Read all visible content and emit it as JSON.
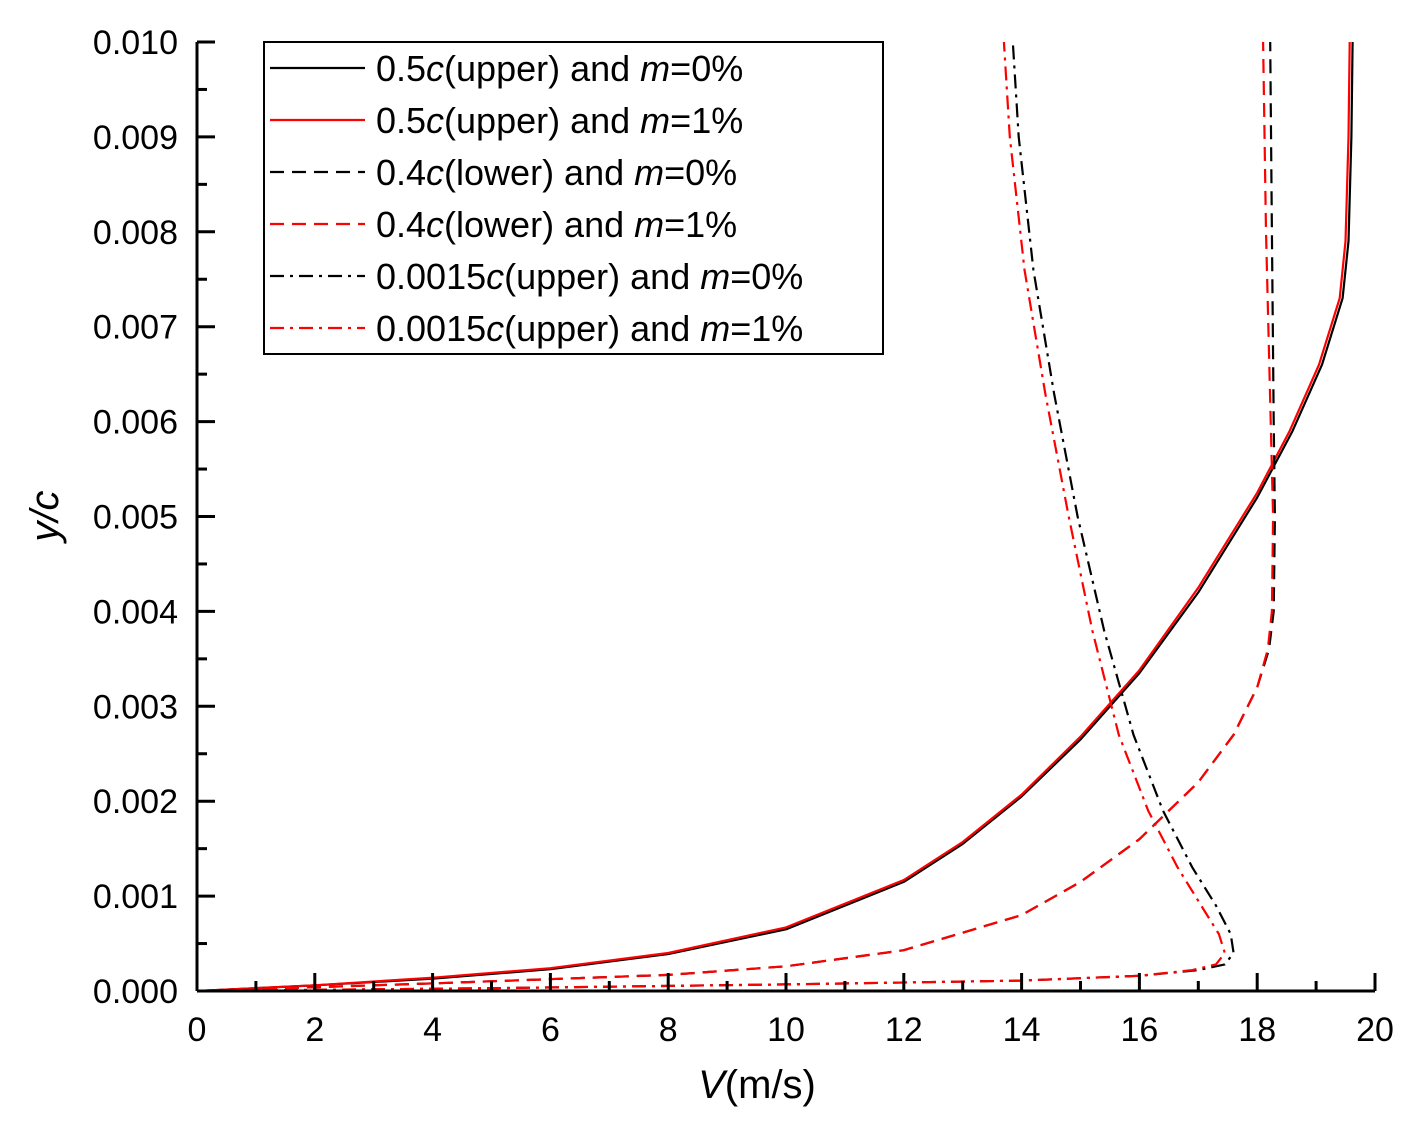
{
  "chart_data": {
    "type": "line",
    "title": "",
    "xlabel_italic": "V",
    "xlabel_rest": "(m/s)",
    "ylabel": "y/c",
    "xlim": [
      0,
      20
    ],
    "ylim": [
      0,
      0.01
    ],
    "xticks": [
      0,
      2,
      4,
      6,
      8,
      10,
      12,
      14,
      16,
      18,
      20
    ],
    "xtick_labels": [
      "0",
      "2",
      "4",
      "6",
      "8",
      "10",
      "12",
      "14",
      "16",
      "18",
      "20"
    ],
    "yticks": [
      0,
      0.001,
      0.002,
      0.003,
      0.004,
      0.005,
      0.006,
      0.007,
      0.008,
      0.009,
      0.01
    ],
    "ytick_labels": [
      "0.000",
      "0.001",
      "0.002",
      "0.003",
      "0.004",
      "0.005",
      "0.006",
      "0.007",
      "0.008",
      "0.009",
      "0.010"
    ],
    "grid": false,
    "legend_position": "top-left",
    "series": [
      {
        "name": "0.5c(upper) and m=0%",
        "legend": {
          "pre": "0.5",
          "c": "c",
          "mid": "(upper) and ",
          "m": "m",
          "post": "=0%"
        },
        "color": "#000000",
        "dash": "solid",
        "x": [
          0,
          2,
          4,
          6,
          8,
          10,
          12,
          13,
          14,
          15,
          16,
          17,
          18,
          18.6,
          19.1,
          19.45,
          19.55,
          19.6,
          19.62
        ],
        "y": [
          0,
          6e-05,
          0.00013,
          0.00023,
          0.00039,
          0.00065,
          0.00115,
          0.00155,
          0.00205,
          0.00265,
          0.00335,
          0.0042,
          0.0052,
          0.0059,
          0.0066,
          0.0073,
          0.0079,
          0.009,
          0.01
        ]
      },
      {
        "name": "0.5c(upper) and m=1%",
        "legend": {
          "pre": "0.5",
          "c": "c",
          "mid": "(upper) and ",
          "m": "m",
          "post": "=1%"
        },
        "color": "#ff0000",
        "dash": "solid",
        "x": [
          0,
          2,
          4,
          6,
          8,
          10,
          12,
          13,
          14,
          15,
          16,
          17,
          18,
          18.55,
          19.05,
          19.4,
          19.5,
          19.55,
          19.57
        ],
        "y": [
          0,
          6e-05,
          0.00014,
          0.00024,
          0.0004,
          0.00067,
          0.00117,
          0.00157,
          0.00207,
          0.00268,
          0.00338,
          0.00425,
          0.00525,
          0.0059,
          0.0066,
          0.0073,
          0.0079,
          0.009,
          0.01
        ]
      },
      {
        "name": "0.4c(lower) and m=0%",
        "legend": {
          "pre": "0.4",
          "c": "c",
          "mid": "(lower) and ",
          "m": "m",
          "post": "=0%"
        },
        "color": "#000000",
        "dash": "dash",
        "x": [
          0,
          4,
          8,
          10,
          12,
          14,
          15,
          16,
          17,
          17.6,
          18.0,
          18.2,
          18.28,
          18.3,
          18.28,
          18.25,
          18.22
        ],
        "y": [
          0,
          8e-05,
          0.00017,
          0.00026,
          0.00043,
          0.0008,
          0.00115,
          0.0016,
          0.0022,
          0.0027,
          0.0032,
          0.0036,
          0.004,
          0.005,
          0.006,
          0.008,
          0.01
        ]
      },
      {
        "name": "0.4c(lower) and m=1%",
        "legend": {
          "pre": "0.4",
          "c": "c",
          "mid": "(lower) and ",
          "m": "m",
          "post": "=1%"
        },
        "color": "#ff0000",
        "dash": "dash",
        "x": [
          0,
          4,
          8,
          10,
          12,
          14,
          15,
          16,
          17,
          17.6,
          18.0,
          18.18,
          18.25,
          18.27,
          18.23,
          18.15,
          18.1
        ],
        "y": [
          0,
          8e-05,
          0.00017,
          0.00026,
          0.00043,
          0.0008,
          0.00115,
          0.0016,
          0.0022,
          0.0027,
          0.0032,
          0.0036,
          0.004,
          0.005,
          0.006,
          0.008,
          0.01
        ]
      },
      {
        "name": "0.0015c(upper) and m=0%",
        "legend": {
          "pre": "0.0015",
          "c": "c",
          "mid": "(upper) and ",
          "m": "m",
          "post": "=0%"
        },
        "color": "#000000",
        "dash": "dashdot",
        "x": [
          0,
          5,
          10,
          14,
          16,
          17.0,
          17.45,
          17.6,
          17.55,
          17.3,
          16.9,
          16.4,
          15.9,
          15.4,
          14.95,
          14.55,
          14.2,
          13.95,
          13.85
        ],
        "y": [
          0,
          3e-05,
          7e-05,
          0.00011,
          0.00016,
          0.00022,
          0.00028,
          0.0004,
          0.0006,
          0.0009,
          0.0013,
          0.0019,
          0.0027,
          0.0038,
          0.005,
          0.0063,
          0.0076,
          0.009,
          0.01
        ]
      },
      {
        "name": "0.0015c(upper) and m=1%",
        "legend": {
          "pre": "0.0015",
          "c": "c",
          "mid": "(upper) and ",
          "m": "m",
          "post": "=1%"
        },
        "color": "#ff0000",
        "dash": "dashdot",
        "x": [
          0,
          5,
          10,
          14,
          16,
          16.9,
          17.3,
          17.45,
          17.35,
          17.05,
          16.65,
          16.15,
          15.65,
          15.2,
          14.8,
          14.4,
          14.05,
          13.8,
          13.7
        ],
        "y": [
          0,
          3e-05,
          7e-05,
          0.00011,
          0.00016,
          0.00022,
          0.00028,
          0.0004,
          0.0006,
          0.0009,
          0.0013,
          0.0019,
          0.0027,
          0.0038,
          0.005,
          0.0063,
          0.0076,
          0.009,
          0.01
        ]
      }
    ]
  }
}
